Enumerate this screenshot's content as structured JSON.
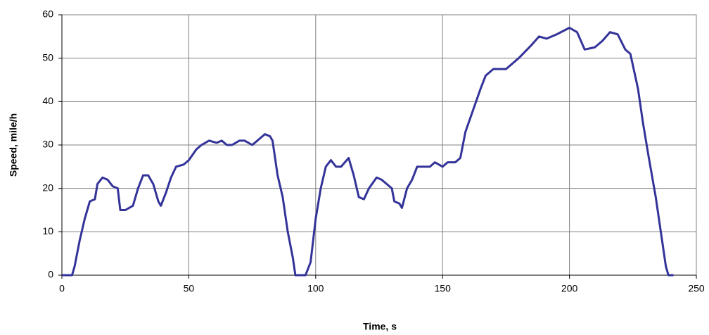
{
  "chart_data": {
    "type": "line",
    "x_label": "Time, s",
    "y_label": "Speed, mile/h",
    "x": [
      0,
      4,
      5,
      7,
      9,
      11,
      13,
      14,
      16,
      18,
      20,
      22,
      23,
      25,
      28,
      30,
      32,
      34,
      36,
      38,
      39,
      41,
      43,
      45,
      48,
      50,
      53,
      55,
      58,
      61,
      63,
      65,
      67,
      70,
      72,
      75,
      77,
      80,
      82,
      83,
      85,
      87,
      89,
      91,
      92,
      96,
      98,
      100,
      102,
      104,
      106,
      108,
      110,
      113,
      115,
      117,
      119,
      121,
      124,
      126,
      128,
      130,
      131,
      133,
      134,
      136,
      138,
      140,
      145,
      147,
      150,
      152,
      155,
      157,
      159,
      162,
      165,
      167,
      170,
      175,
      180,
      185,
      188,
      191,
      195,
      200,
      203,
      206,
      210,
      213,
      216,
      219,
      222,
      224,
      227,
      229,
      231,
      234,
      236,
      238,
      239,
      241
    ],
    "values": [
      0,
      0,
      2,
      8,
      13,
      17,
      17.5,
      21,
      22.5,
      22,
      20.5,
      20,
      15,
      15,
      16,
      20,
      23,
      23,
      21,
      17,
      16,
      19,
      22.5,
      25,
      25.5,
      26.5,
      29,
      30,
      31,
      30.5,
      31,
      30,
      30,
      31,
      31,
      30,
      31,
      32.5,
      32,
      31,
      23,
      18,
      10,
      4,
      0,
      0,
      3,
      13,
      20,
      25,
      26.5,
      25,
      25,
      27,
      23,
      18,
      17.5,
      20,
      22.5,
      22,
      21,
      20,
      17,
      16.5,
      15.5,
      20,
      22,
      25,
      25,
      26,
      25,
      26,
      26,
      27,
      33,
      38,
      43,
      46,
      47.5,
      47.5,
      50,
      53,
      55,
      54.5,
      55.5,
      57,
      56,
      52,
      52.5,
      54,
      56,
      55.5,
      52,
      51,
      43,
      35,
      28,
      18,
      10,
      2,
      0,
      0
    ],
    "color": "#333399",
    "xlim": [
      0,
      250
    ],
    "xticks": [
      0,
      50,
      100,
      150,
      200,
      250
    ],
    "ylim": [
      0,
      60
    ],
    "yticks": [
      0,
      10,
      20,
      30,
      40,
      50,
      60
    ],
    "grid": true
  }
}
